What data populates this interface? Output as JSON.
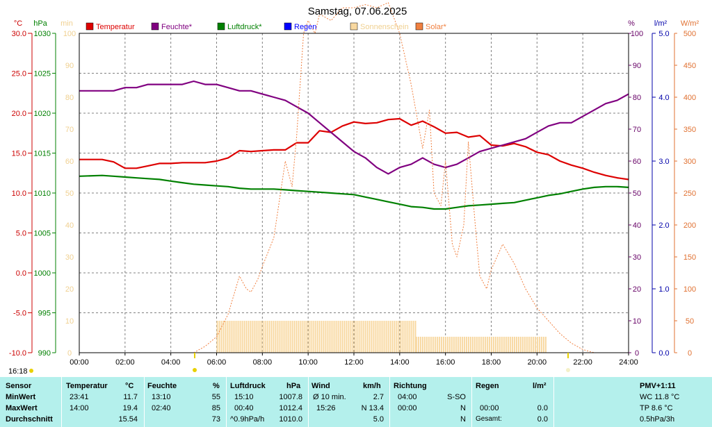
{
  "chart_data": {
    "type": "line",
    "title": "Samstag, 07.06.2025",
    "x_ticks": [
      "00:00",
      "02:00",
      "04:00",
      "06:00",
      "08:00",
      "10:00",
      "12:00",
      "14:00",
      "16:00",
      "18:00",
      "20:00",
      "22:00",
      "24:00"
    ],
    "axes": {
      "temp": {
        "unit": "°C",
        "range": [
          -10,
          30
        ],
        "ticks": [
          "30.0",
          "25.0",
          "20.0",
          "15.0",
          "10.0",
          "5.0",
          "0.0",
          "-5.0",
          "-10.0"
        ],
        "color": "#cc0000"
      },
      "pressure": {
        "unit": "hPa",
        "range": [
          990,
          1030
        ],
        "ticks": [
          "1030",
          "1025",
          "1020",
          "1015",
          "1010",
          "1005",
          "1000",
          "995",
          "990"
        ],
        "color": "#008000"
      },
      "minutes": {
        "unit": "min",
        "range": [
          0,
          100
        ],
        "ticks": [
          "100",
          "90",
          "80",
          "70",
          "60",
          "50",
          "40",
          "30",
          "20",
          "10",
          "0"
        ],
        "color": "#f0d090"
      },
      "humidity": {
        "unit": "%",
        "range": [
          0,
          100
        ],
        "ticks": [
          "100",
          "90",
          "80",
          "70",
          "60",
          "50",
          "40",
          "30",
          "20",
          "10",
          "0"
        ],
        "color": "#660066"
      },
      "rain": {
        "unit": "l/m²",
        "range": [
          0,
          5
        ],
        "ticks": [
          "5.0",
          "4.0",
          "3.0",
          "2.0",
          "1.0",
          "0.0"
        ],
        "color": "#0000aa"
      },
      "solar": {
        "unit": "W/m²",
        "range": [
          0,
          500
        ],
        "ticks": [
          "500",
          "450",
          "400",
          "350",
          "300",
          "250",
          "200",
          "150",
          "100",
          "50",
          "0"
        ],
        "color": "#e07030"
      }
    },
    "legend": [
      {
        "label": "Temperatur",
        "color": "#dd0000"
      },
      {
        "label": "Feuchte*",
        "color": "#800080"
      },
      {
        "label": "Luftdruck*",
        "color": "#008000"
      },
      {
        "label": "Regen",
        "color": "#0000ff"
      },
      {
        "label": "Sonnenschein",
        "color": "#f8d8a0"
      },
      {
        "label": "Solar*",
        "color": "#f08040"
      }
    ],
    "series": [
      {
        "name": "Temperatur",
        "axis": "temp",
        "color": "#dd0000",
        "x": [
          0,
          1,
          1.5,
          2,
          2.5,
          3,
          3.5,
          4,
          4.5,
          5,
          5.5,
          6,
          6.5,
          7,
          7.5,
          8,
          8.5,
          9,
          9.5,
          10,
          10.5,
          11,
          11.5,
          12,
          12.5,
          13,
          13.5,
          14,
          14.5,
          15,
          15.5,
          16,
          16.5,
          17,
          17.5,
          18,
          18.5,
          19,
          19.5,
          20,
          20.5,
          21,
          21.5,
          22,
          22.5,
          23,
          23.5,
          24
        ],
        "y": [
          14.2,
          14.2,
          13.9,
          13.1,
          13.1,
          13.4,
          13.7,
          13.7,
          13.8,
          13.8,
          13.8,
          14.0,
          14.4,
          15.3,
          15.2,
          15.3,
          15.4,
          15.4,
          16.3,
          16.3,
          17.8,
          17.6,
          18.4,
          18.9,
          18.7,
          18.8,
          19.2,
          19.3,
          18.5,
          19.0,
          18.3,
          17.5,
          17.6,
          17.0,
          17.2,
          16.0,
          15.9,
          16.2,
          15.8,
          15.1,
          14.8,
          14.0,
          13.5,
          13.1,
          12.6,
          12.2,
          11.9,
          11.7
        ]
      },
      {
        "name": "Feuchte*",
        "axis": "humidity",
        "color": "#800080",
        "x": [
          0,
          1,
          1.5,
          2,
          2.5,
          3,
          3.5,
          4,
          4.5,
          5,
          5.5,
          6,
          6.5,
          7,
          7.5,
          8,
          8.5,
          9,
          9.5,
          10,
          10.5,
          11,
          11.5,
          12,
          12.5,
          13,
          13.5,
          14,
          14.5,
          15,
          15.5,
          16,
          16.5,
          17,
          17.5,
          18,
          18.5,
          19,
          19.5,
          20,
          20.5,
          21,
          21.5,
          22,
          22.5,
          23,
          23.5,
          24
        ],
        "y": [
          82,
          82,
          82,
          83,
          83,
          84,
          84,
          84,
          84,
          85,
          84,
          84,
          83,
          82,
          82,
          81,
          80,
          79,
          77,
          75,
          72,
          69,
          66,
          63,
          61,
          58,
          56,
          58,
          59,
          61,
          59,
          58,
          59,
          61,
          63,
          64,
          65,
          66,
          67,
          69,
          71,
          72,
          72,
          74,
          76,
          78,
          79,
          81
        ]
      },
      {
        "name": "Luftdruck*",
        "axis": "pressure",
        "color": "#008000",
        "x": [
          0,
          1,
          1.5,
          2,
          2.5,
          3,
          3.5,
          4,
          4.5,
          5,
          5.5,
          6,
          6.5,
          7,
          7.5,
          8,
          8.5,
          9,
          9.5,
          10,
          10.5,
          11,
          11.5,
          12,
          12.5,
          13,
          13.5,
          14,
          14.5,
          15,
          15.5,
          16,
          16.5,
          17,
          17.5,
          18,
          18.5,
          19,
          19.5,
          20,
          20.5,
          21,
          21.5,
          22,
          22.5,
          23,
          23.5,
          24
        ],
        "y": [
          1012.1,
          1012.2,
          1012.1,
          1012.0,
          1011.9,
          1011.8,
          1011.7,
          1011.5,
          1011.3,
          1011.1,
          1011.0,
          1010.9,
          1010.8,
          1010.6,
          1010.5,
          1010.5,
          1010.5,
          1010.4,
          1010.3,
          1010.2,
          1010.1,
          1010.0,
          1009.9,
          1009.8,
          1009.5,
          1009.2,
          1008.9,
          1008.6,
          1008.3,
          1008.2,
          1008.0,
          1008.0,
          1008.2,
          1008.4,
          1008.5,
          1008.6,
          1008.7,
          1008.8,
          1009.1,
          1009.4,
          1009.7,
          1009.9,
          1010.2,
          1010.5,
          1010.7,
          1010.8,
          1010.8,
          1010.7
        ]
      },
      {
        "name": "Solar*",
        "axis": "solar",
        "color": "#f08040",
        "x": [
          5,
          5.5,
          6,
          6.5,
          7,
          7.3,
          7.5,
          7.8,
          8,
          8.5,
          9,
          9.3,
          9.5,
          9.8,
          10,
          10.3,
          10.5,
          11,
          11.5,
          12,
          12.5,
          13,
          13.5,
          14,
          14.5,
          14.8,
          15,
          15.3,
          15.5,
          15.8,
          16,
          16.3,
          16.5,
          16.8,
          17,
          17.3,
          17.5,
          17.8,
          18,
          18.5,
          19,
          19.5,
          20,
          20.5,
          21,
          21.5,
          22,
          22.5
        ],
        "y": [
          0,
          10,
          25,
          60,
          120,
          100,
          95,
          115,
          135,
          180,
          300,
          260,
          340,
          500,
          520,
          500,
          530,
          520,
          540,
          540,
          545,
          540,
          548,
          500,
          420,
          360,
          320,
          380,
          250,
          230,
          300,
          170,
          150,
          200,
          330,
          200,
          120,
          100,
          130,
          170,
          140,
          100,
          70,
          50,
          30,
          15,
          5,
          0
        ]
      },
      {
        "name": "Sonnenschein",
        "axis": "minutes",
        "color": "#f8d8a0",
        "type": "bar",
        "blocks": [
          {
            "from": 6,
            "to": 14.7,
            "value": 10
          },
          {
            "from": 14.7,
            "to": 20.4,
            "value": 5
          }
        ]
      }
    ]
  },
  "time_label": "16:18",
  "stats": {
    "headers": {
      "sensor": "Sensor",
      "temp": "Temperatur",
      "temp_unit": "°C",
      "hum": "Feuchte",
      "hum_unit": "%",
      "press": "Luftdruck",
      "press_unit": "hPa",
      "wind": "Wind",
      "wind_unit": "km/h",
      "dir": "Richtung",
      "rain": "Regen",
      "rain_unit": "l/m²",
      "pmv": "PMV+1:11"
    },
    "min": {
      "label": "MinWert",
      "temp_time": "23:41",
      "temp": "11.7",
      "hum_time": "13:10",
      "hum": "55",
      "press_time": "15:10",
      "press": "1007.8",
      "wind_label": "Ø 10 min.",
      "wind": "2.7",
      "dir_time": "04:00",
      "dir": "S-SO",
      "pmv": "WC 11.8 °C"
    },
    "max": {
      "label": "MaxWert",
      "temp_time": "14:00",
      "temp": "19.4",
      "hum_time": "02:40",
      "hum": "85",
      "press_time": "00:40",
      "press": "1012.4",
      "wind_time": "15:26",
      "wind": "N 13.4",
      "dir_time": "00:00",
      "dir": "N",
      "rain_time": "00:00",
      "rain": "0.0",
      "pmv": "TP 8.6 °C"
    },
    "avg": {
      "label": "Durchschnitt",
      "temp": "15.54",
      "hum": "73",
      "press_trend": "^0.9hPa/h",
      "press": "1010.0",
      "wind": "5.0",
      "dir": "N",
      "rain_label": "Gesamt:",
      "rain": "0.0",
      "pmv": "0.5hPa/3h"
    }
  }
}
